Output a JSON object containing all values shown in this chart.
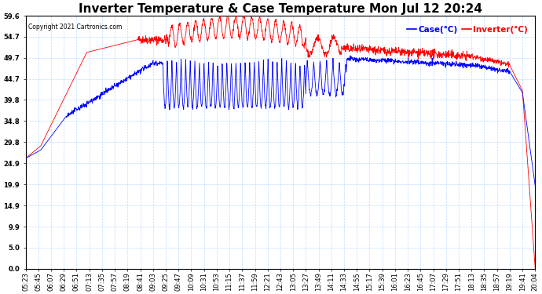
{
  "title": "Inverter Temperature & Case Temperature Mon Jul 12 20:24",
  "copyright": "Copyright 2021 Cartronics.com",
  "legend_case": "Case(°C)",
  "legend_inverter": "Inverter(°C)",
  "case_color": "blue",
  "inverter_color": "red",
  "ylim": [
    0.0,
    59.6
  ],
  "yticks": [
    0.0,
    5.0,
    9.9,
    14.9,
    19.9,
    24.9,
    29.8,
    34.8,
    39.8,
    44.7,
    49.7,
    54.7,
    59.6
  ],
  "xtick_labels": [
    "05:23",
    "05:45",
    "06:07",
    "06:29",
    "06:51",
    "07:13",
    "07:35",
    "07:57",
    "08:19",
    "08:41",
    "09:03",
    "09:25",
    "09:47",
    "10:09",
    "10:31",
    "10:53",
    "11:15",
    "11:37",
    "11:59",
    "12:21",
    "12:43",
    "13:05",
    "13:27",
    "13:49",
    "14:11",
    "14:33",
    "14:55",
    "15:17",
    "15:39",
    "16:01",
    "16:23",
    "16:45",
    "17:07",
    "17:29",
    "17:51",
    "18:13",
    "18:35",
    "18:57",
    "19:19",
    "19:41",
    "20:04"
  ],
  "background_color": "#ffffff",
  "grid_color": "#bbddff",
  "title_fontsize": 11,
  "axis_fontsize": 6,
  "label_fontsize": 7.5
}
